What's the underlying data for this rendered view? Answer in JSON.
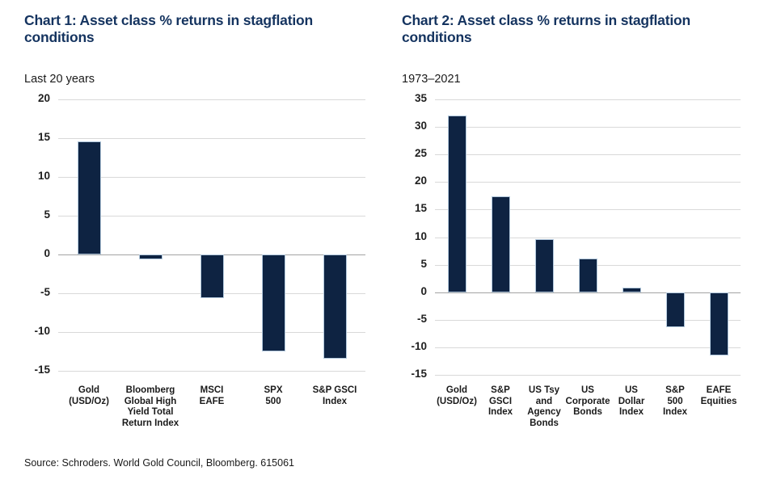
{
  "colors": {
    "bar_fill": "#0e2342",
    "bar_outline": "#b3c9dd",
    "title_navy": "#14335f",
    "gridline": "#d9d9d9",
    "zero_line": "#a3a3a3",
    "text": "#1a1a1a"
  },
  "source_line": "Source: Schroders. World Gold Council, Bloomberg. 615061",
  "chart_data": [
    {
      "type": "bar",
      "title": "Chart 1: Asset class % returns in stagflation conditions",
      "subtitle": "Last 20 years",
      "categories": [
        "Gold\n(USD/Oz)",
        "Bloomberg\nGlobal High\nYield Total\nReturn Index",
        "MSCI\nEAFE",
        "SPX\n500",
        "S&P GSCI\nIndex"
      ],
      "values": [
        14.6,
        -0.6,
        -5.6,
        -12.5,
        -13.4
      ],
      "xlabel": "",
      "ylabel": "",
      "ylim": [
        -15,
        20
      ],
      "ytick_step": 5,
      "grid": true,
      "legend": "none"
    },
    {
      "type": "bar",
      "title": "Chart 2: Asset class % returns in stagflation conditions",
      "subtitle": "1973–2021",
      "categories": [
        "Gold\n(USD/Oz)",
        "S&P\nGSCI\nIndex",
        "US Tsy\nand\nAgency\nBonds",
        "US\nCorporate\nBonds",
        "US\nDollar\nIndex",
        "S&P\n500\nIndex",
        "EAFE\nEquities"
      ],
      "values": [
        32.1,
        17.4,
        9.6,
        6.1,
        0.9,
        -6.4,
        -11.5
      ],
      "xlabel": "",
      "ylabel": "",
      "ylim": [
        -15,
        35
      ],
      "ytick_step": 5,
      "grid": true,
      "legend": "none"
    }
  ]
}
